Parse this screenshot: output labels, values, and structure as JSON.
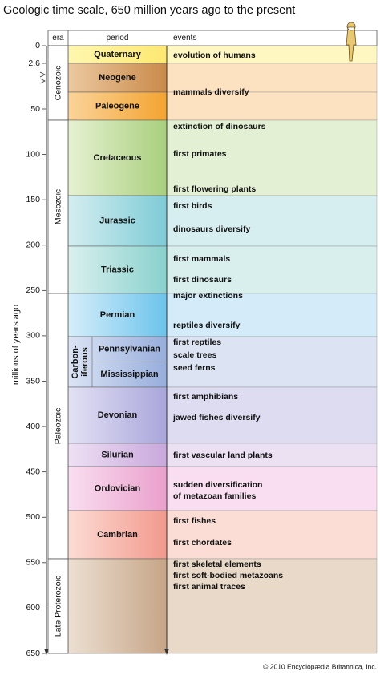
{
  "title": "Geologic time scale, 650 million years ago to the present",
  "axis": {
    "label": "millions of years ago",
    "ticks": [
      0,
      2.6,
      50,
      100,
      150,
      200,
      250,
      300,
      350,
      400,
      450,
      500,
      550,
      600,
      650
    ]
  },
  "headers": {
    "era": "era",
    "period": "period",
    "events": "events"
  },
  "eras": [
    {
      "name": "Cenozoic"
    },
    {
      "name": "Mesozoic"
    },
    {
      "name": "Paleozoic"
    },
    {
      "name": "Late Proterozoic"
    }
  ],
  "periods": [
    {
      "name": "Quaternary",
      "events": [
        "evolution of humans"
      ]
    },
    {
      "name": "Neogene",
      "events": []
    },
    {
      "name": "Paleogene",
      "events": [
        "mammals diversify"
      ]
    },
    {
      "name": "Cretaceous",
      "events": [
        "extinction of dinosaurs",
        "first primates",
        "first flowering plants"
      ]
    },
    {
      "name": "Jurassic",
      "events": [
        "first birds",
        "dinosaurs diversify"
      ]
    },
    {
      "name": "Triassic",
      "events": [
        "first mammals",
        "first dinosaurs"
      ]
    },
    {
      "name": "Permian",
      "events": [
        "major extinctions",
        "reptiles diversify"
      ]
    },
    {
      "name_lines": [
        "Carbon-",
        "iferous"
      ],
      "subperiods": [
        "Pennsylvanian",
        "Mississippian"
      ],
      "events": [
        "first reptiles",
        "scale trees",
        "seed ferns"
      ]
    },
    {
      "name": "Devonian",
      "events": [
        "first amphibians",
        "jawed fishes diversify"
      ]
    },
    {
      "name": "Silurian",
      "events": [
        "first vascular land plants"
      ]
    },
    {
      "name": "Ordovician",
      "events": [
        "sudden diversification",
        "of metazoan families"
      ]
    },
    {
      "name": "Cambrian",
      "events": [
        "first fishes",
        "first chordates"
      ]
    },
    {
      "events": [
        "first skeletal elements",
        "first soft-bodied metazoans",
        "first animal traces"
      ]
    }
  ],
  "credit": "© 2010 Encyclopædia Britannica, Inc."
}
